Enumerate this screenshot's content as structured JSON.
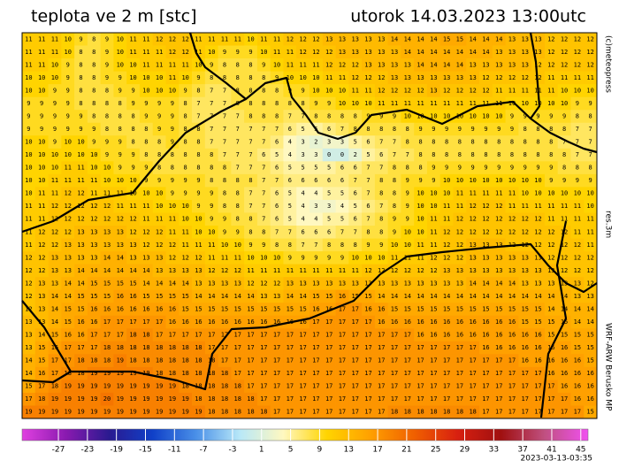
{
  "header": {
    "title": "teplota ve 2 m [stc]",
    "datetime": "utorok 14.03.2023 13:00utc"
  },
  "side_labels": {
    "copyright": "(c)meteopress",
    "resolution": "res.3m",
    "model": "WRF-ARW Berusko MP"
  },
  "footer": {
    "run": "2023-03-13-03:35"
  },
  "colorbar": {
    "lim": [
      -32,
      46
    ],
    "ticks": [
      -27,
      -23,
      -19,
      -15,
      -11,
      -7,
      -3,
      1,
      5,
      9,
      13,
      17,
      21,
      25,
      29,
      33,
      37,
      41,
      45
    ],
    "colors": [
      "#e040e0",
      "#8a1ab0",
      "#2a1a90",
      "#1040c8",
      "#4a90e8",
      "#b8e8f8",
      "#fff8c0",
      "#ffd400",
      "#ffa000",
      "#f06000",
      "#d82010",
      "#a01010",
      "#c05080",
      "#f050f0"
    ]
  },
  "grid": [
    [
      11,
      11,
      11,
      10,
      9,
      8,
      9,
      10,
      11,
      11,
      12,
      12,
      12,
      11,
      11,
      11,
      11,
      10,
      11,
      11,
      12,
      12,
      12,
      13,
      13,
      13,
      13,
      13,
      14,
      14,
      14,
      14,
      15,
      15,
      14,
      14,
      14,
      13,
      13,
      13,
      12,
      12,
      12,
      12
    ],
    [
      11,
      11,
      11,
      10,
      8,
      8,
      9,
      10,
      11,
      11,
      11,
      12,
      12,
      11,
      10,
      9,
      9,
      9,
      10,
      11,
      11,
      12,
      12,
      12,
      13,
      13,
      13,
      13,
      13,
      14,
      14,
      14,
      14,
      14,
      14,
      14,
      13,
      13,
      13,
      13,
      12,
      12,
      12,
      12
    ],
    [
      11,
      11,
      10,
      9,
      8,
      8,
      9,
      10,
      10,
      11,
      11,
      11,
      11,
      10,
      9,
      8,
      8,
      8,
      9,
      10,
      11,
      11,
      11,
      12,
      12,
      12,
      13,
      13,
      13,
      13,
      14,
      14,
      14,
      14,
      13,
      13,
      13,
      13,
      13,
      12,
      12,
      12,
      12,
      12
    ],
    [
      10,
      10,
      10,
      9,
      8,
      8,
      9,
      9,
      10,
      10,
      10,
      11,
      10,
      9,
      8,
      8,
      8,
      8,
      8,
      9,
      10,
      10,
      10,
      11,
      11,
      12,
      12,
      12,
      13,
      13,
      13,
      13,
      13,
      13,
      13,
      12,
      12,
      12,
      12,
      12,
      11,
      11,
      11,
      11
    ],
    [
      10,
      10,
      9,
      9,
      8,
      8,
      8,
      9,
      9,
      10,
      10,
      10,
      9,
      8,
      7,
      7,
      8,
      8,
      8,
      8,
      9,
      9,
      10,
      10,
      10,
      11,
      11,
      12,
      12,
      12,
      12,
      13,
      12,
      12,
      12,
      12,
      11,
      11,
      11,
      11,
      11,
      10,
      10,
      10
    ],
    [
      9,
      9,
      9,
      9,
      8,
      8,
      8,
      8,
      9,
      9,
      9,
      9,
      8,
      7,
      7,
      7,
      8,
      8,
      8,
      8,
      8,
      8,
      9,
      9,
      10,
      10,
      10,
      11,
      11,
      11,
      11,
      11,
      11,
      11,
      11,
      11,
      11,
      10,
      10,
      10,
      10,
      10,
      9,
      9
    ],
    [
      9,
      9,
      9,
      9,
      9,
      8,
      8,
      8,
      8,
      9,
      9,
      9,
      8,
      7,
      7,
      7,
      7,
      8,
      8,
      8,
      7,
      7,
      8,
      8,
      8,
      8,
      9,
      9,
      9,
      10,
      10,
      10,
      10,
      10,
      10,
      10,
      10,
      9,
      9,
      9,
      9,
      9,
      8,
      8
    ],
    [
      9,
      9,
      9,
      9,
      9,
      9,
      8,
      8,
      8,
      8,
      9,
      9,
      8,
      8,
      7,
      7,
      7,
      7,
      7,
      7,
      6,
      5,
      5,
      6,
      7,
      8,
      8,
      8,
      8,
      8,
      9,
      9,
      9,
      9,
      9,
      9,
      9,
      9,
      8,
      8,
      8,
      8,
      7,
      7
    ],
    [
      10,
      10,
      9,
      10,
      10,
      9,
      9,
      9,
      8,
      8,
      8,
      9,
      8,
      8,
      7,
      7,
      7,
      7,
      7,
      6,
      4,
      3,
      2,
      3,
      3,
      5,
      6,
      7,
      7,
      8,
      8,
      8,
      8,
      8,
      8,
      8,
      8,
      8,
      8,
      8,
      8,
      7,
      7,
      7
    ],
    [
      10,
      10,
      10,
      10,
      10,
      10,
      9,
      9,
      9,
      8,
      8,
      8,
      8,
      8,
      8,
      7,
      7,
      7,
      6,
      5,
      4,
      3,
      3,
      0,
      0,
      2,
      5,
      6,
      7,
      7,
      8,
      8,
      8,
      8,
      8,
      8,
      8,
      8,
      8,
      8,
      8,
      8,
      7,
      7
    ],
    [
      10,
      10,
      10,
      11,
      11,
      10,
      10,
      9,
      9,
      9,
      8,
      8,
      8,
      8,
      8,
      8,
      7,
      7,
      7,
      6,
      5,
      5,
      5,
      5,
      6,
      6,
      7,
      7,
      8,
      8,
      8,
      9,
      9,
      9,
      9,
      9,
      9,
      9,
      9,
      9,
      9,
      8,
      8,
      8
    ],
    [
      10,
      10,
      11,
      11,
      11,
      11,
      10,
      10,
      10,
      9,
      9,
      9,
      9,
      9,
      8,
      8,
      8,
      8,
      7,
      7,
      6,
      6,
      6,
      6,
      6,
      7,
      7,
      8,
      8,
      9,
      9,
      9,
      10,
      10,
      10,
      10,
      10,
      10,
      10,
      10,
      9,
      9,
      9,
      9
    ],
    [
      10,
      11,
      11,
      12,
      12,
      11,
      11,
      11,
      10,
      10,
      10,
      9,
      9,
      9,
      9,
      8,
      8,
      7,
      7,
      6,
      5,
      4,
      4,
      5,
      5,
      6,
      7,
      8,
      8,
      9,
      10,
      10,
      10,
      11,
      11,
      11,
      11,
      11,
      10,
      10,
      10,
      10,
      10,
      10
    ],
    [
      11,
      11,
      12,
      12,
      12,
      12,
      12,
      11,
      11,
      11,
      10,
      10,
      10,
      9,
      9,
      8,
      8,
      7,
      7,
      6,
      5,
      4,
      3,
      3,
      4,
      5,
      6,
      7,
      8,
      9,
      10,
      10,
      11,
      11,
      12,
      12,
      12,
      11,
      11,
      11,
      11,
      11,
      11,
      10
    ],
    [
      11,
      11,
      12,
      12,
      12,
      12,
      12,
      12,
      12,
      11,
      11,
      11,
      10,
      10,
      9,
      9,
      8,
      8,
      7,
      6,
      5,
      4,
      4,
      5,
      5,
      6,
      7,
      8,
      9,
      9,
      10,
      11,
      11,
      12,
      12,
      12,
      12,
      12,
      12,
      12,
      11,
      11,
      11,
      11
    ],
    [
      11,
      12,
      12,
      12,
      13,
      13,
      13,
      13,
      12,
      12,
      12,
      11,
      11,
      10,
      10,
      9,
      9,
      8,
      8,
      7,
      7,
      6,
      6,
      6,
      7,
      7,
      8,
      8,
      9,
      10,
      10,
      11,
      12,
      12,
      12,
      12,
      12,
      12,
      12,
      12,
      12,
      12,
      11,
      11
    ],
    [
      11,
      12,
      12,
      13,
      13,
      13,
      13,
      13,
      13,
      12,
      12,
      12,
      11,
      11,
      11,
      10,
      10,
      9,
      9,
      8,
      8,
      7,
      7,
      8,
      8,
      8,
      9,
      9,
      10,
      10,
      11,
      11,
      12,
      12,
      13,
      13,
      13,
      12,
      12,
      12,
      12,
      12,
      12,
      11
    ],
    [
      12,
      12,
      13,
      13,
      13,
      13,
      14,
      14,
      13,
      13,
      13,
      12,
      12,
      12,
      11,
      11,
      11,
      10,
      10,
      10,
      9,
      9,
      9,
      9,
      9,
      10,
      10,
      10,
      11,
      11,
      11,
      12,
      12,
      12,
      13,
      13,
      13,
      13,
      13,
      13,
      12,
      12,
      12,
      12
    ],
    [
      12,
      12,
      13,
      13,
      14,
      14,
      14,
      14,
      14,
      14,
      13,
      13,
      13,
      13,
      12,
      12,
      12,
      11,
      11,
      11,
      11,
      11,
      11,
      11,
      11,
      11,
      12,
      12,
      12,
      12,
      12,
      12,
      13,
      13,
      13,
      13,
      13,
      13,
      13,
      13,
      13,
      12,
      12,
      12
    ],
    [
      12,
      13,
      13,
      14,
      14,
      15,
      15,
      15,
      15,
      14,
      14,
      14,
      14,
      13,
      13,
      13,
      13,
      12,
      12,
      12,
      13,
      13,
      13,
      13,
      13,
      13,
      13,
      13,
      13,
      13,
      13,
      13,
      13,
      13,
      14,
      14,
      14,
      14,
      13,
      13,
      13,
      13,
      13,
      12
    ],
    [
      12,
      13,
      14,
      14,
      15,
      15,
      15,
      16,
      16,
      15,
      15,
      15,
      15,
      14,
      14,
      14,
      14,
      14,
      13,
      13,
      14,
      14,
      15,
      15,
      16,
      15,
      15,
      14,
      14,
      14,
      14,
      14,
      14,
      14,
      14,
      14,
      14,
      14,
      14,
      14,
      14,
      14,
      13,
      13
    ],
    [
      12,
      13,
      14,
      15,
      15,
      16,
      16,
      16,
      16,
      16,
      16,
      16,
      15,
      15,
      15,
      15,
      15,
      15,
      15,
      15,
      15,
      15,
      16,
      16,
      17,
      17,
      16,
      16,
      15,
      15,
      15,
      15,
      15,
      15,
      15,
      15,
      15,
      15,
      15,
      15,
      14,
      14,
      14,
      14
    ],
    [
      13,
      13,
      14,
      15,
      16,
      16,
      17,
      17,
      17,
      17,
      17,
      16,
      16,
      16,
      16,
      16,
      16,
      16,
      16,
      16,
      16,
      16,
      17,
      17,
      17,
      17,
      17,
      16,
      16,
      16,
      16,
      16,
      16,
      16,
      16,
      16,
      16,
      16,
      15,
      15,
      15,
      15,
      14,
      14
    ],
    [
      13,
      14,
      15,
      16,
      16,
      17,
      17,
      17,
      18,
      18,
      17,
      17,
      17,
      17,
      17,
      17,
      17,
      17,
      17,
      17,
      17,
      17,
      17,
      17,
      17,
      17,
      17,
      17,
      17,
      17,
      16,
      16,
      16,
      16,
      16,
      16,
      16,
      16,
      16,
      16,
      15,
      15,
      15,
      15
    ],
    [
      13,
      15,
      16,
      17,
      17,
      17,
      18,
      18,
      18,
      18,
      18,
      18,
      18,
      18,
      17,
      17,
      17,
      17,
      17,
      17,
      17,
      17,
      17,
      17,
      17,
      17,
      17,
      17,
      17,
      17,
      17,
      17,
      17,
      17,
      17,
      16,
      16,
      16,
      16,
      16,
      16,
      16,
      15,
      15
    ],
    [
      14,
      15,
      17,
      17,
      18,
      18,
      18,
      19,
      18,
      18,
      18,
      18,
      18,
      18,
      18,
      17,
      17,
      17,
      17,
      17,
      17,
      17,
      17,
      17,
      17,
      17,
      17,
      17,
      17,
      17,
      17,
      17,
      17,
      17,
      17,
      17,
      17,
      17,
      16,
      16,
      16,
      16,
      16,
      15
    ],
    [
      14,
      16,
      17,
      18,
      18,
      19,
      19,
      19,
      19,
      19,
      18,
      18,
      18,
      18,
      18,
      18,
      17,
      17,
      17,
      17,
      17,
      17,
      17,
      17,
      17,
      17,
      17,
      17,
      17,
      17,
      17,
      17,
      17,
      17,
      17,
      17,
      17,
      17,
      17,
      17,
      16,
      16,
      16,
      16
    ],
    [
      15,
      17,
      18,
      19,
      19,
      19,
      19,
      19,
      19,
      19,
      19,
      19,
      18,
      18,
      18,
      18,
      18,
      17,
      17,
      17,
      17,
      17,
      17,
      17,
      17,
      17,
      17,
      17,
      17,
      17,
      17,
      17,
      17,
      17,
      17,
      17,
      17,
      17,
      17,
      17,
      17,
      16,
      16,
      16
    ],
    [
      17,
      18,
      19,
      19,
      19,
      19,
      20,
      19,
      19,
      19,
      19,
      19,
      19,
      18,
      18,
      18,
      18,
      18,
      17,
      17,
      17,
      17,
      17,
      17,
      17,
      17,
      17,
      17,
      17,
      17,
      17,
      17,
      17,
      17,
      17,
      17,
      17,
      17,
      17,
      17,
      17,
      17,
      16,
      16
    ],
    [
      19,
      19,
      19,
      19,
      19,
      19,
      19,
      19,
      19,
      19,
      19,
      19,
      19,
      19,
      18,
      18,
      18,
      18,
      18,
      17,
      17,
      17,
      17,
      17,
      17,
      17,
      17,
      17,
      18,
      18,
      18,
      18,
      18,
      18,
      18,
      17,
      17,
      17,
      17,
      17,
      17,
      17,
      17,
      15
    ]
  ]
}
